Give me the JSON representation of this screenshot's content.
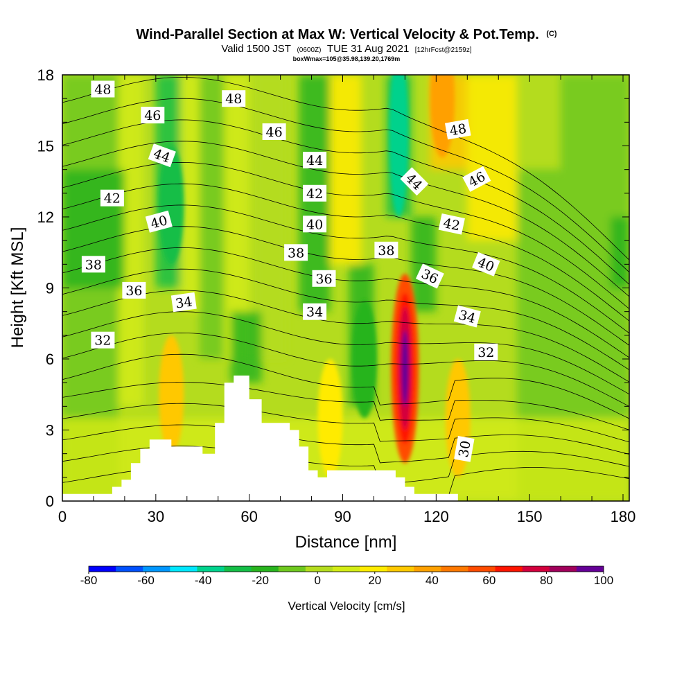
{
  "chart_data": {
    "type": "heatmap",
    "title": "Wind-Parallel Section at Max W: Vertical Velocity & Pot.Temp.",
    "title_mark": "(C)",
    "subtitle_valid": "Valid 1500 JST",
    "subtitle_utc": "(0600Z)",
    "subtitle_date": "TUE 31 Aug 2021",
    "subtitle_fcst": "[12hrFcst@2159z]",
    "subtitle_box": "boxWmax=105@35.98,139.20,1769m",
    "xlabel": "Distance [nm]",
    "ylabel": "Height [Kft MSL]",
    "xlim": [
      0,
      182
    ],
    "ylim": [
      0,
      18
    ],
    "x_ticks": [
      "0",
      "30",
      "60",
      "90",
      "120",
      "150",
      "180"
    ],
    "y_ticks": [
      "0",
      "3",
      "6",
      "9",
      "12",
      "15",
      "18"
    ],
    "colorbar": {
      "title": "Vertical Velocity [cm/s]",
      "range": [
        -80,
        100
      ],
      "ticks": [
        "-80",
        "-60",
        "-40",
        "-20",
        "0",
        "20",
        "40",
        "60",
        "80",
        "100"
      ],
      "colors": [
        "#0000ff",
        "#0050ff",
        "#0096ff",
        "#00e6ff",
        "#00d28c",
        "#14be46",
        "#28b41e",
        "#6ec81e",
        "#b4dc1e",
        "#d2eb14",
        "#ffeb00",
        "#ffc800",
        "#ffa000",
        "#ff7800",
        "#ff4b00",
        "#ff1400",
        "#d2003c",
        "#a0005a",
        "#640096"
      ]
    },
    "theta_contours": {
      "levels_K": [
        30,
        31,
        32,
        33,
        34,
        35,
        36,
        37,
        38,
        39,
        40,
        41,
        42,
        43,
        44,
        45,
        46,
        47,
        48
      ],
      "labels": [
        {
          "text": "48",
          "x": 13,
          "y": 17.4,
          "rot": 0
        },
        {
          "text": "48",
          "x": 55,
          "y": 17.0,
          "rot": 0
        },
        {
          "text": "48",
          "x": 127,
          "y": 15.7,
          "rot": -10
        },
        {
          "text": "46",
          "x": 29,
          "y": 16.3,
          "rot": 0
        },
        {
          "text": "46",
          "x": 68,
          "y": 15.6,
          "rot": 0
        },
        {
          "text": "46",
          "x": 133,
          "y": 13.6,
          "rot": -28
        },
        {
          "text": "44",
          "x": 32,
          "y": 14.6,
          "rot": 20
        },
        {
          "text": "44",
          "x": 81,
          "y": 14.4,
          "rot": 0
        },
        {
          "text": "44",
          "x": 113,
          "y": 13.5,
          "rot": 45
        },
        {
          "text": "42",
          "x": 16,
          "y": 12.8,
          "rot": 0
        },
        {
          "text": "42",
          "x": 81,
          "y": 13.0,
          "rot": 0
        },
        {
          "text": "42",
          "x": 125,
          "y": 11.7,
          "rot": 12
        },
        {
          "text": "40",
          "x": 31,
          "y": 11.8,
          "rot": -15
        },
        {
          "text": "40",
          "x": 81,
          "y": 11.7,
          "rot": 0
        },
        {
          "text": "40",
          "x": 136,
          "y": 10.0,
          "rot": 22
        },
        {
          "text": "38",
          "x": 10,
          "y": 10.0,
          "rot": 0
        },
        {
          "text": "38",
          "x": 75,
          "y": 10.5,
          "rot": 0
        },
        {
          "text": "38",
          "x": 104,
          "y": 10.6,
          "rot": 0
        },
        {
          "text": "36",
          "x": 23,
          "y": 8.9,
          "rot": 0
        },
        {
          "text": "36",
          "x": 84,
          "y": 9.4,
          "rot": 0
        },
        {
          "text": "36",
          "x": 118,
          "y": 9.5,
          "rot": 25
        },
        {
          "text": "34",
          "x": 39,
          "y": 8.4,
          "rot": -8
        },
        {
          "text": "34",
          "x": 81,
          "y": 8.0,
          "rot": 0
        },
        {
          "text": "34",
          "x": 130,
          "y": 7.8,
          "rot": 15
        },
        {
          "text": "32",
          "x": 13,
          "y": 6.8,
          "rot": 0
        },
        {
          "text": "32",
          "x": 136,
          "y": 6.3,
          "rot": 0
        },
        {
          "text": "30",
          "x": 129,
          "y": 2.2,
          "rot": -80
        }
      ]
    },
    "terrain_kft": [
      [
        0,
        0.3
      ],
      [
        16,
        0.3
      ],
      [
        16,
        0.6
      ],
      [
        19,
        0.6
      ],
      [
        19,
        0.9
      ],
      [
        22,
        0.9
      ],
      [
        22,
        1.6
      ],
      [
        25,
        1.6
      ],
      [
        25,
        2.2
      ],
      [
        28,
        2.2
      ],
      [
        28,
        2.6
      ],
      [
        35,
        2.6
      ],
      [
        35,
        2.3
      ],
      [
        45,
        2.3
      ],
      [
        45,
        2.0
      ],
      [
        49,
        2.0
      ],
      [
        49,
        3.3
      ],
      [
        52,
        3.3
      ],
      [
        52,
        5.0
      ],
      [
        55,
        5.0
      ],
      [
        55,
        5.3
      ],
      [
        60,
        5.3
      ],
      [
        60,
        4.3
      ],
      [
        64,
        4.3
      ],
      [
        64,
        3.3
      ],
      [
        73,
        3.3
      ],
      [
        73,
        3.0
      ],
      [
        76,
        3.0
      ],
      [
        76,
        2.3
      ],
      [
        79,
        2.3
      ],
      [
        79,
        1.3
      ],
      [
        82,
        1.3
      ],
      [
        82,
        1.0
      ],
      [
        85,
        1.0
      ],
      [
        85,
        1.3
      ],
      [
        107,
        1.3
      ],
      [
        107,
        1.0
      ],
      [
        110,
        1.0
      ],
      [
        110,
        0.6
      ],
      [
        113,
        0.6
      ],
      [
        113,
        0.3
      ],
      [
        127,
        0.3
      ],
      [
        127,
        0
      ],
      [
        0,
        0
      ]
    ],
    "w_features_cms": [
      {
        "x": 110,
        "z": 5.5,
        "w": 100
      },
      {
        "x": 110,
        "z": 5.0,
        "w": 80
      },
      {
        "x": 108,
        "z": 15.5,
        "w": -40
      },
      {
        "x": 35,
        "z": 12.5,
        "w": -25
      },
      {
        "x": 35,
        "z": 4.5,
        "w": 30
      },
      {
        "x": 127,
        "z": 3.5,
        "w": 30
      },
      {
        "x": 122,
        "z": 17.0,
        "w": 35
      },
      {
        "x": 86,
        "z": 3.5,
        "w": 20
      },
      {
        "x": 97,
        "z": 6.0,
        "w": -15
      }
    ]
  }
}
